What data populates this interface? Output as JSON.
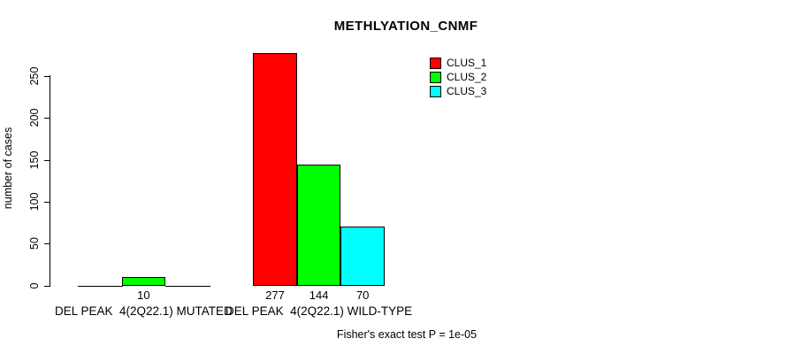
{
  "chart_data": {
    "type": "bar",
    "title": "METHLYATION_CNMF",
    "xlabel": "",
    "ylabel": "number of cases",
    "ylim": [
      0,
      250
    ],
    "yticks": [
      0,
      50,
      100,
      150,
      200,
      250
    ],
    "grid": false,
    "legend_position": "top-right",
    "categories": [
      "DEL PEAK  4(2Q22.1) MUTATED",
      "DEL PEAK  4(2Q22.1) WILD-TYPE"
    ],
    "series": [
      {
        "name": "CLUS_1",
        "color": "#ff0000",
        "values": [
          0,
          277
        ]
      },
      {
        "name": "CLUS_2",
        "color": "#00ff00",
        "values": [
          10,
          144
        ]
      },
      {
        "name": "CLUS_3",
        "color": "#00ffff",
        "values": [
          0,
          70
        ]
      }
    ],
    "bar_value_labels": [
      "10",
      "277",
      "144",
      "70"
    ],
    "annotation": "Fisher's exact test P = 1e-05"
  },
  "colors": {
    "axis": "#000000",
    "text": "#000000",
    "background": "#ffffff"
  }
}
